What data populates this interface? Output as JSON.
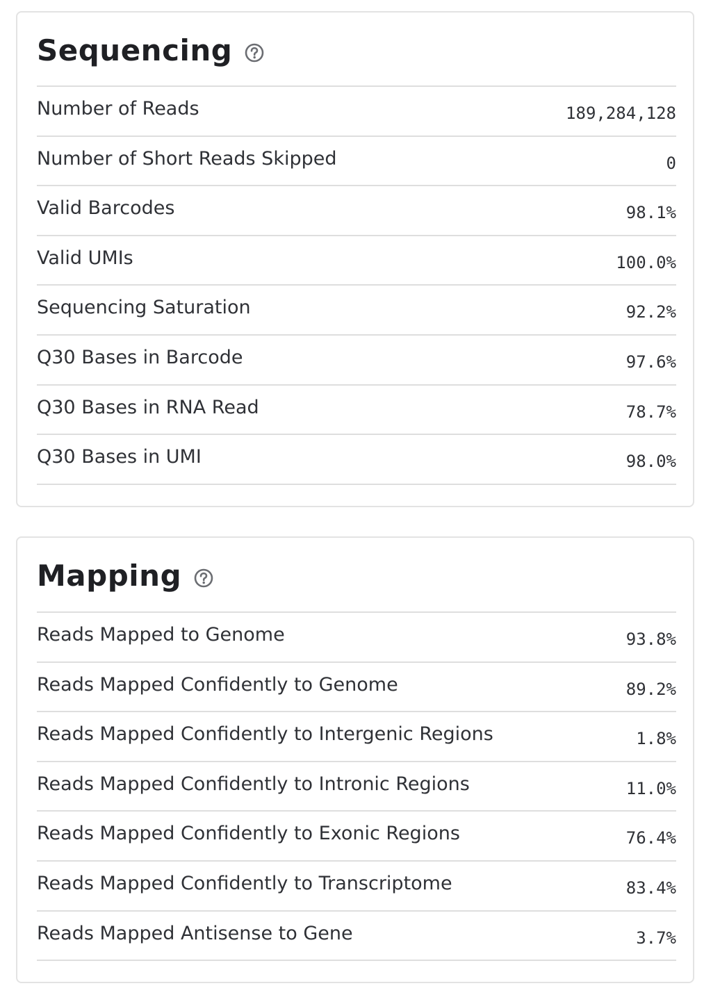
{
  "sequencing": {
    "title": "Sequencing",
    "help_icon": "question-circle-icon",
    "rows": [
      {
        "label": "Number of Reads",
        "value": "189,284,128"
      },
      {
        "label": "Number of Short Reads Skipped",
        "value": "0"
      },
      {
        "label": "Valid Barcodes",
        "value": "98.1%"
      },
      {
        "label": "Valid UMIs",
        "value": "100.0%"
      },
      {
        "label": "Sequencing Saturation",
        "value": "92.2%"
      },
      {
        "label": "Q30 Bases in Barcode",
        "value": "97.6%"
      },
      {
        "label": "Q30 Bases in RNA Read",
        "value": "78.7%"
      },
      {
        "label": "Q30 Bases in UMI",
        "value": "98.0%"
      }
    ]
  },
  "mapping": {
    "title": "Mapping",
    "help_icon": "question-circle-icon",
    "rows": [
      {
        "label": "Reads Mapped to Genome",
        "value": "93.8%"
      },
      {
        "label": "Reads Mapped Confidently to Genome",
        "value": "89.2%"
      },
      {
        "label": "Reads Mapped Confidently to Intergenic Regions",
        "value": "1.8%"
      },
      {
        "label": "Reads Mapped Confidently to Intronic Regions",
        "value": "11.0%"
      },
      {
        "label": "Reads Mapped Confidently to Exonic Regions",
        "value": "76.4%"
      },
      {
        "label": "Reads Mapped Confidently to Transcriptome",
        "value": "83.4%"
      },
      {
        "label": "Reads Mapped Antisense to Gene",
        "value": "3.7%"
      }
    ]
  },
  "colors": {
    "title": "#1f2024",
    "text": "#2f3136",
    "divider": "#dedede",
    "card_border": "#e3e3e3",
    "icon": "#6b6d72"
  }
}
